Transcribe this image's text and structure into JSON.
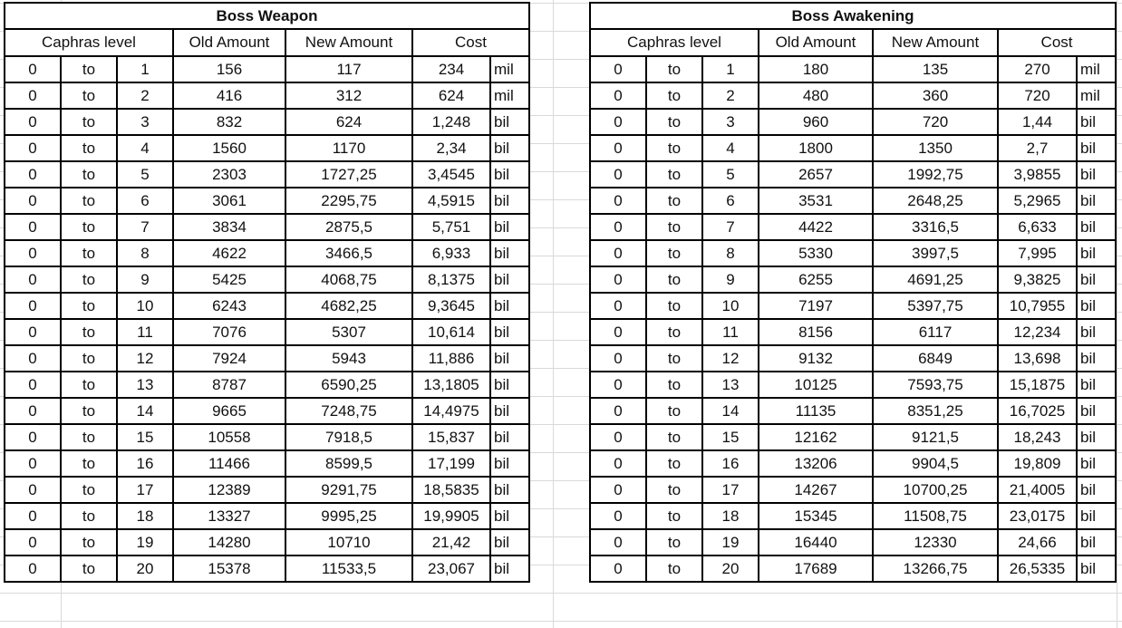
{
  "tables": [
    {
      "title": "Boss Weapon",
      "headers": {
        "level": "Caphras level",
        "old": "Old Amount",
        "new": "New Amount",
        "cost": "Cost"
      },
      "rows": [
        [
          "0",
          "to",
          "1",
          "156",
          "117",
          "234",
          "mil"
        ],
        [
          "0",
          "to",
          "2",
          "416",
          "312",
          "624",
          "mil"
        ],
        [
          "0",
          "to",
          "3",
          "832",
          "624",
          "1,248",
          "bil"
        ],
        [
          "0",
          "to",
          "4",
          "1560",
          "1170",
          "2,34",
          "bil"
        ],
        [
          "0",
          "to",
          "5",
          "2303",
          "1727,25",
          "3,4545",
          "bil"
        ],
        [
          "0",
          "to",
          "6",
          "3061",
          "2295,75",
          "4,5915",
          "bil"
        ],
        [
          "0",
          "to",
          "7",
          "3834",
          "2875,5",
          "5,751",
          "bil"
        ],
        [
          "0",
          "to",
          "8",
          "4622",
          "3466,5",
          "6,933",
          "bil"
        ],
        [
          "0",
          "to",
          "9",
          "5425",
          "4068,75",
          "8,1375",
          "bil"
        ],
        [
          "0",
          "to",
          "10",
          "6243",
          "4682,25",
          "9,3645",
          "bil"
        ],
        [
          "0",
          "to",
          "11",
          "7076",
          "5307",
          "10,614",
          "bil"
        ],
        [
          "0",
          "to",
          "12",
          "7924",
          "5943",
          "11,886",
          "bil"
        ],
        [
          "0",
          "to",
          "13",
          "8787",
          "6590,25",
          "13,1805",
          "bil"
        ],
        [
          "0",
          "to",
          "14",
          "9665",
          "7248,75",
          "14,4975",
          "bil"
        ],
        [
          "0",
          "to",
          "15",
          "10558",
          "7918,5",
          "15,837",
          "bil"
        ],
        [
          "0",
          "to",
          "16",
          "11466",
          "8599,5",
          "17,199",
          "bil"
        ],
        [
          "0",
          "to",
          "17",
          "12389",
          "9291,75",
          "18,5835",
          "bil"
        ],
        [
          "0",
          "to",
          "18",
          "13327",
          "9995,25",
          "19,9905",
          "bil"
        ],
        [
          "0",
          "to",
          "19",
          "14280",
          "10710",
          "21,42",
          "bil"
        ],
        [
          "0",
          "to",
          "20",
          "15378",
          "11533,5",
          "23,067",
          "bil"
        ]
      ]
    },
    {
      "title": "Boss Awakening",
      "headers": {
        "level": "Caphras level",
        "old": "Old Amount",
        "new": "New Amount",
        "cost": "Cost"
      },
      "rows": [
        [
          "0",
          "to",
          "1",
          "180",
          "135",
          "270",
          "mil"
        ],
        [
          "0",
          "to",
          "2",
          "480",
          "360",
          "720",
          "mil"
        ],
        [
          "0",
          "to",
          "3",
          "960",
          "720",
          "1,44",
          "bil"
        ],
        [
          "0",
          "to",
          "4",
          "1800",
          "1350",
          "2,7",
          "bil"
        ],
        [
          "0",
          "to",
          "5",
          "2657",
          "1992,75",
          "3,9855",
          "bil"
        ],
        [
          "0",
          "to",
          "6",
          "3531",
          "2648,25",
          "5,2965",
          "bil"
        ],
        [
          "0",
          "to",
          "7",
          "4422",
          "3316,5",
          "6,633",
          "bil"
        ],
        [
          "0",
          "to",
          "8",
          "5330",
          "3997,5",
          "7,995",
          "bil"
        ],
        [
          "0",
          "to",
          "9",
          "6255",
          "4691,25",
          "9,3825",
          "bil"
        ],
        [
          "0",
          "to",
          "10",
          "7197",
          "5397,75",
          "10,7955",
          "bil"
        ],
        [
          "0",
          "to",
          "11",
          "8156",
          "6117",
          "12,234",
          "bil"
        ],
        [
          "0",
          "to",
          "12",
          "9132",
          "6849",
          "13,698",
          "bil"
        ],
        [
          "0",
          "to",
          "13",
          "10125",
          "7593,75",
          "15,1875",
          "bil"
        ],
        [
          "0",
          "to",
          "14",
          "11135",
          "8351,25",
          "16,7025",
          "bil"
        ],
        [
          "0",
          "to",
          "15",
          "12162",
          "9121,5",
          "18,243",
          "bil"
        ],
        [
          "0",
          "to",
          "16",
          "13206",
          "9904,5",
          "19,809",
          "bil"
        ],
        [
          "0",
          "to",
          "17",
          "14267",
          "10700,25",
          "21,4005",
          "bil"
        ],
        [
          "0",
          "to",
          "18",
          "15345",
          "11508,75",
          "23,0175",
          "bil"
        ],
        [
          "0",
          "to",
          "19",
          "16440",
          "12330",
          "24,66",
          "bil"
        ],
        [
          "0",
          "to",
          "20",
          "17689",
          "13266,75",
          "26,5335",
          "bil"
        ]
      ]
    }
  ]
}
